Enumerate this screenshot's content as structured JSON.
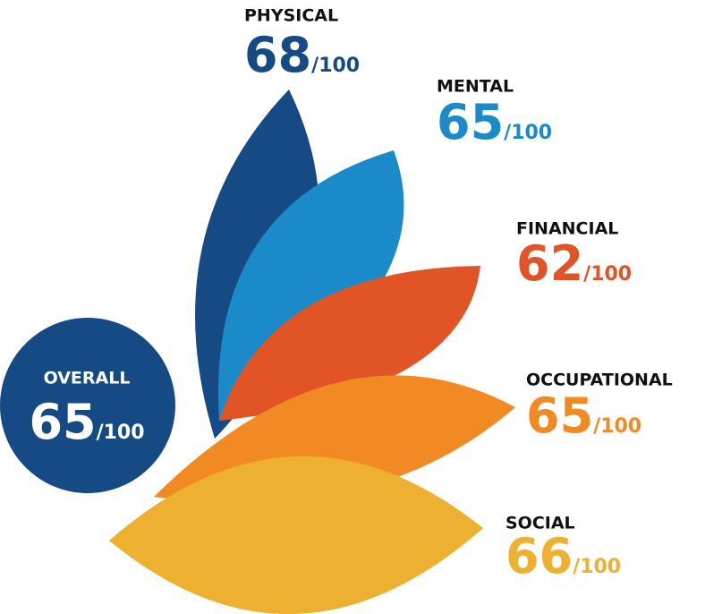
{
  "overall": {
    "label": "OVERALL",
    "score": 65,
    "max_label": "/100",
    "color": "#164a84"
  },
  "dimensions": [
    {
      "label": "PHYSICAL",
      "score": 68,
      "max_label": "/100",
      "color": "#154a84"
    },
    {
      "label": "MENTAL",
      "score": 65,
      "max_label": "/100",
      "color": "#1b8ac9"
    },
    {
      "label": "FINANCIAL",
      "score": 62,
      "max_label": "/100",
      "color": "#e05426"
    },
    {
      "label": "OCCUPATIONAL",
      "score": 65,
      "max_label": "/100",
      "color": "#f28a23"
    },
    {
      "label": "SOCIAL",
      "score": 66,
      "max_label": "/100",
      "color": "#edb030"
    }
  ]
}
